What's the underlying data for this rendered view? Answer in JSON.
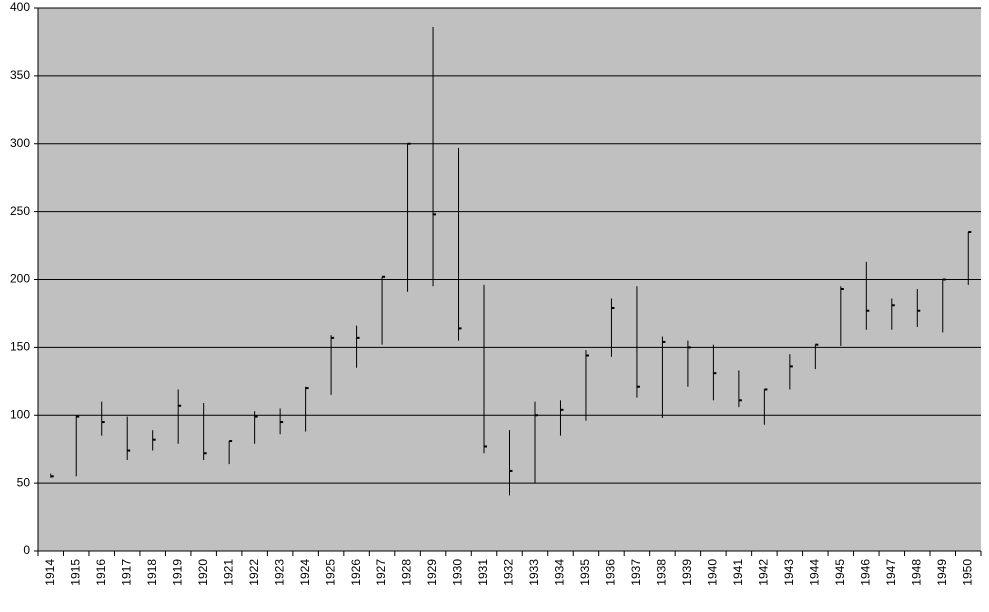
{
  "chart_data": {
    "type": "hlc",
    "categories": [
      "1914",
      "1915",
      "1916",
      "1917",
      "1918",
      "1919",
      "1920",
      "1921",
      "1922",
      "1923",
      "1924",
      "1925",
      "1926",
      "1927",
      "1928",
      "1929",
      "1930",
      "1931",
      "1932",
      "1933",
      "1934",
      "1935",
      "1936",
      "1937",
      "1938",
      "1939",
      "1940",
      "1941",
      "1942",
      "1943",
      "1944",
      "1945",
      "1946",
      "1947",
      "1948",
      "1949",
      "1950"
    ],
    "high": [
      57,
      100,
      110,
      99,
      89,
      119,
      109,
      81,
      103,
      105,
      121,
      159,
      166,
      202,
      300,
      386,
      297,
      196,
      89,
      110,
      111,
      148,
      186,
      195,
      158,
      155,
      152,
      133,
      119,
      145,
      152,
      195,
      213,
      186,
      193,
      200,
      235
    ],
    "low": [
      54,
      55,
      85,
      67,
      74,
      79,
      67,
      64,
      79,
      86,
      88,
      115,
      135,
      152,
      191,
      195,
      155,
      72,
      41,
      50,
      85,
      96,
      143,
      113,
      98,
      121,
      111,
      106,
      93,
      119,
      134,
      151,
      163,
      163,
      165,
      161,
      196
    ],
    "close": [
      55,
      99,
      95,
      74,
      82,
      107,
      72,
      81,
      99,
      95,
      120,
      157,
      157,
      202,
      300,
      248,
      164,
      77,
      59,
      100,
      104,
      144,
      179,
      121,
      154,
      150,
      131,
      111,
      119,
      136,
      152,
      193,
      177,
      181,
      177,
      200,
      235
    ],
    "color": "#000000",
    "background": "#c0c0c0",
    "ylim": [
      0,
      400
    ],
    "yticks": [
      0,
      50,
      100,
      150,
      200,
      250,
      300,
      350,
      400
    ],
    "grid": true
  }
}
